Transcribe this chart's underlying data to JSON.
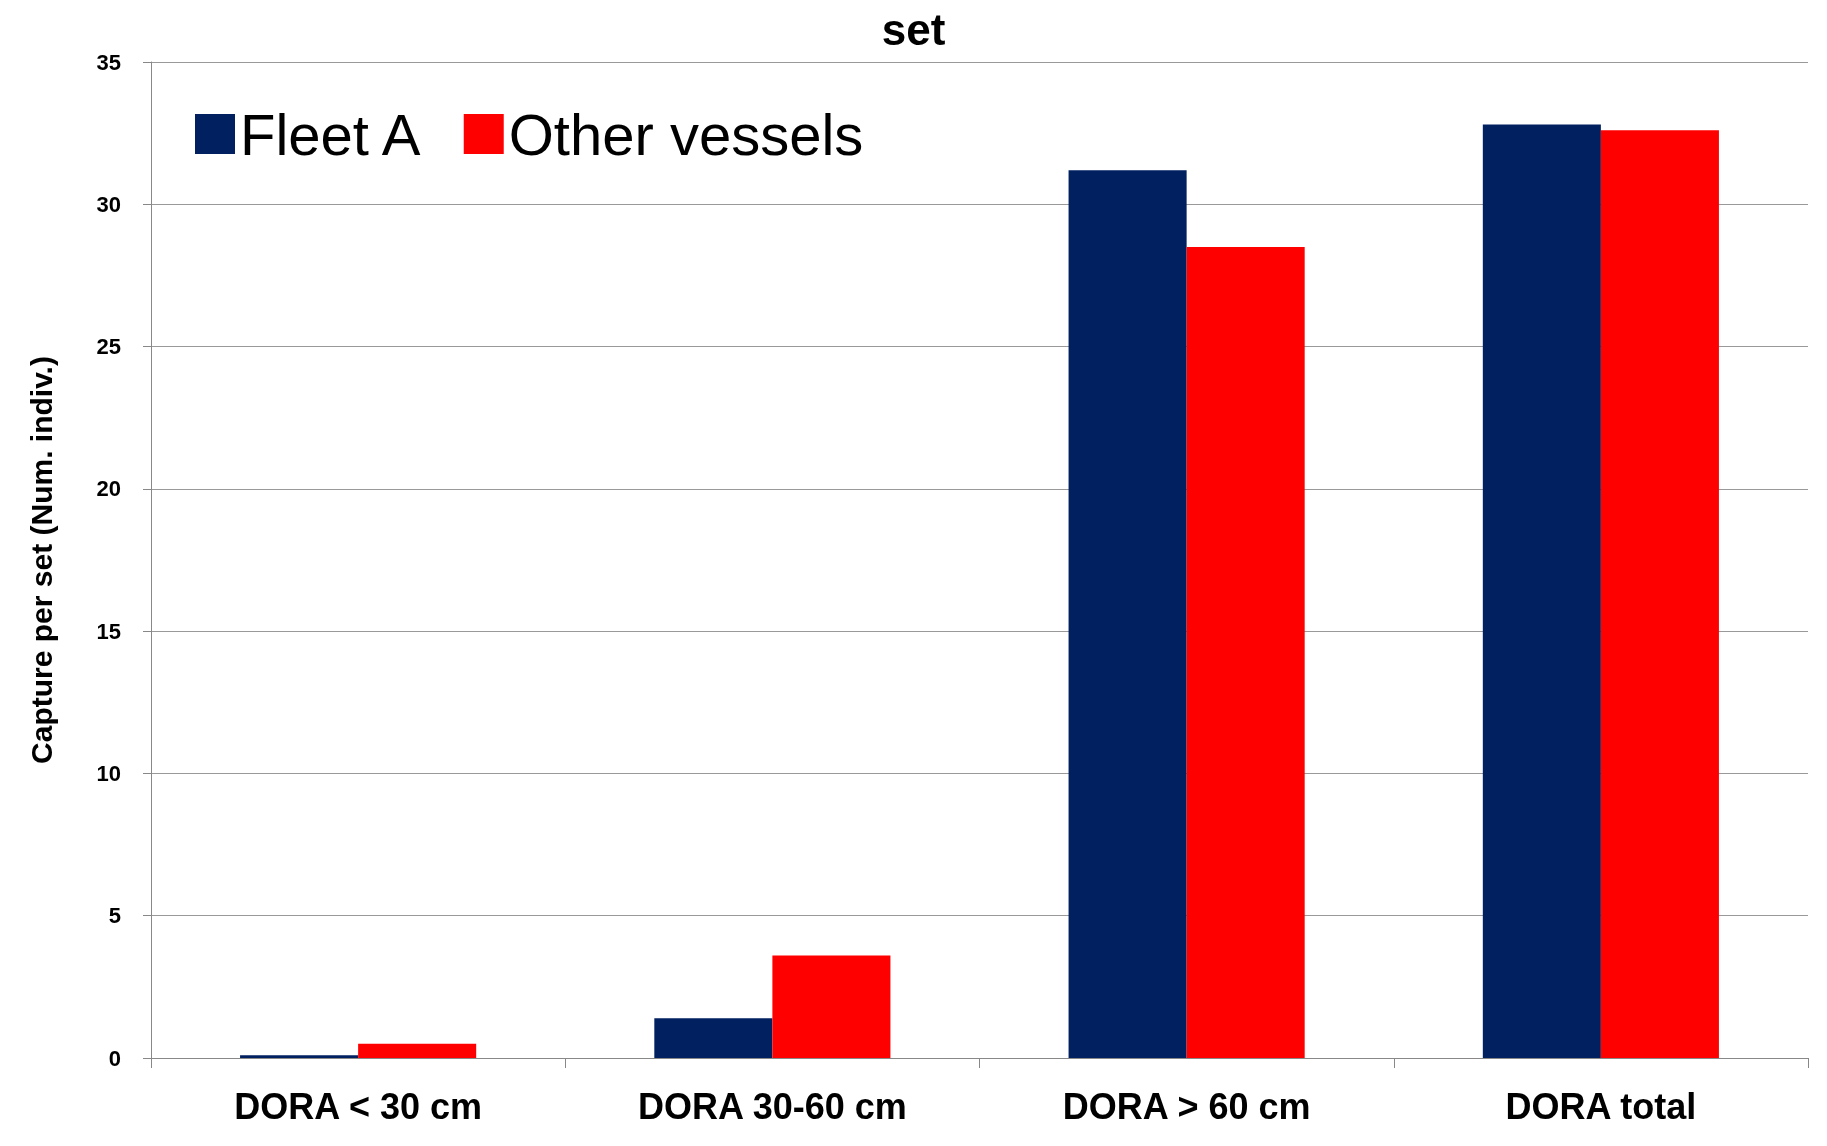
{
  "chart_data": {
    "type": "bar",
    "title": "set",
    "ylabel": "Capture per set (Num. indiv.)",
    "categories": [
      "DORA < 30 cm",
      "DORA 30-60 cm",
      "DORA > 60 cm",
      "DORA total"
    ],
    "series": [
      {
        "name": "Fleet A",
        "color": "#002060",
        "values": [
          0.1,
          1.4,
          31.2,
          32.8
        ]
      },
      {
        "name": "Other vessels",
        "color": "#ff0000",
        "values": [
          0.5,
          3.6,
          28.5,
          32.6
        ]
      }
    ],
    "ylim": [
      0,
      35
    ],
    "yticks": [
      0,
      5,
      10,
      15,
      20,
      25,
      30,
      35
    ],
    "grid": "y",
    "legend": "top left"
  }
}
